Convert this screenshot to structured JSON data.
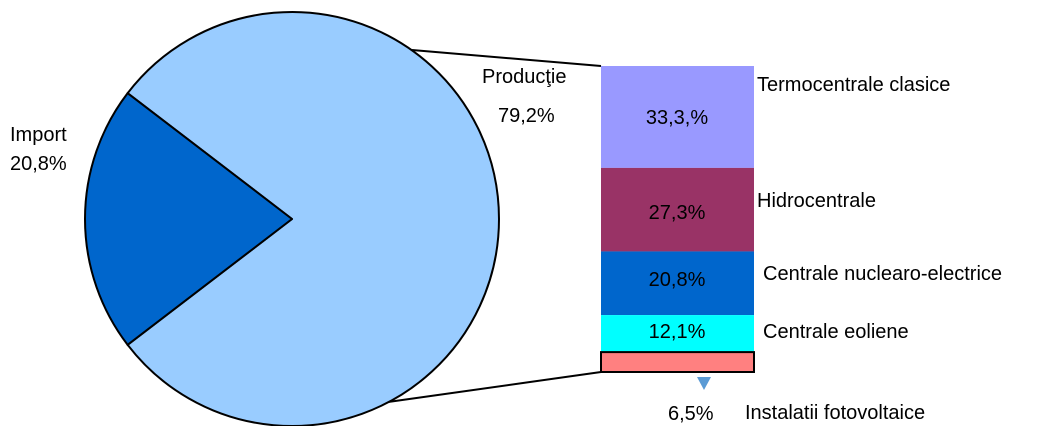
{
  "chart_data": {
    "type": "bar-of-pie",
    "pie": {
      "slices": [
        {
          "name": "Import",
          "value": 20.8,
          "label": "20,8%",
          "color": "#0066CC"
        },
        {
          "name": "Producţie",
          "value": 79.2,
          "label": "79,2%",
          "color": "#99CCFF"
        }
      ]
    },
    "bar": {
      "segments": [
        {
          "name": "Termocentrale clasice",
          "value": 33.3,
          "label": "33,3,%",
          "color": "#9999FF"
        },
        {
          "name": "Hidrocentrale",
          "value": 27.3,
          "label": "27,3%",
          "color": "#993366"
        },
        {
          "name": "Centrale nuclearo-electrice",
          "value": 20.8,
          "label": "20,8%",
          "color": "#0066CC"
        },
        {
          "name": "Centrale eoliene",
          "value": 12.1,
          "label": "12,1%",
          "color": "#00FFFF"
        },
        {
          "name": "Instalatii fotovoltaice",
          "value": 6.5,
          "label": "6,5%",
          "color": "#FF8080"
        }
      ]
    },
    "marker_color": "#5B9BD5"
  }
}
